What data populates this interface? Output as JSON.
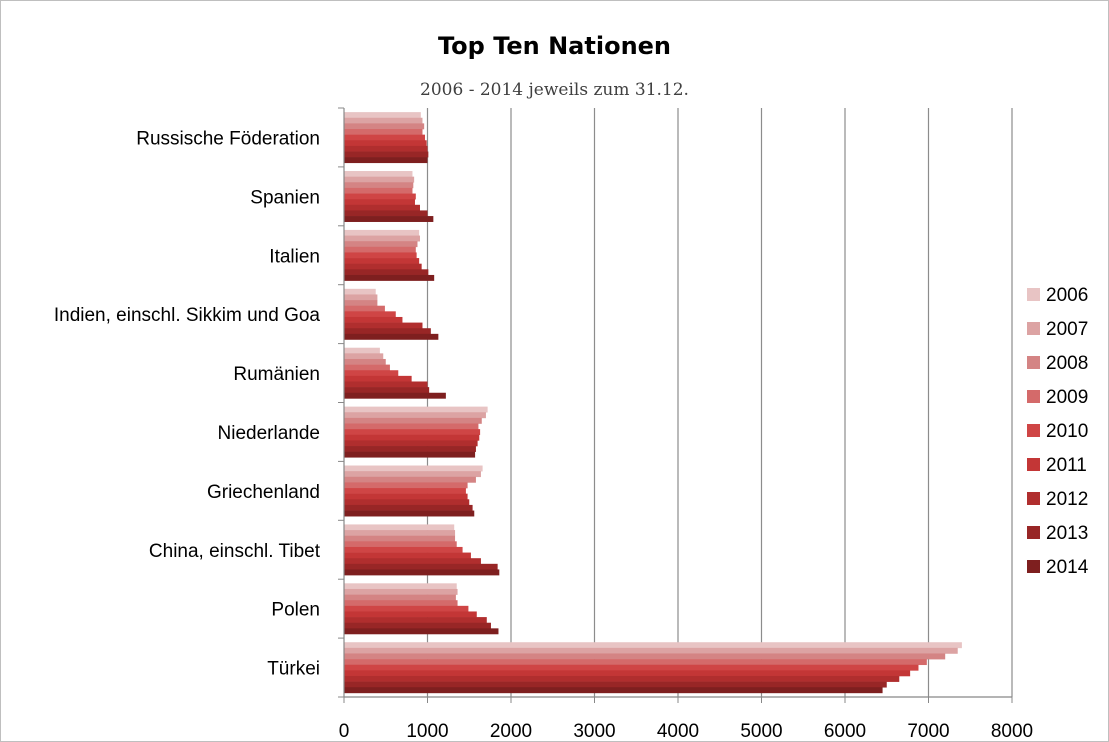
{
  "chart_data": {
    "type": "bar",
    "orientation": "horizontal",
    "title": "Top Ten Nationen",
    "subtitle": "2006 - 2014 jeweils zum 31.12.",
    "xlabel": "",
    "ylabel": "",
    "xlim": [
      0,
      8000
    ],
    "x_ticks": [
      0,
      1000,
      2000,
      3000,
      4000,
      5000,
      6000,
      7000,
      8000
    ],
    "grid": "vertical",
    "legend_position": "right",
    "categories": [
      "Russische Föderation",
      "Spanien",
      "Italien",
      "Indien, einschl. Sikkim und Goa",
      "Rumänien",
      "Niederlande",
      "Griechenland",
      "China, einschl. Tibet",
      "Polen",
      "Türkei"
    ],
    "series": [
      {
        "name": "2006",
        "color": "#e8c4c4",
        "values": [
          920,
          820,
          900,
          380,
          430,
          1720,
          1660,
          1320,
          1350,
          7400
        ]
      },
      {
        "name": "2007",
        "color": "#dca3a3",
        "values": [
          940,
          840,
          910,
          400,
          470,
          1700,
          1640,
          1330,
          1360,
          7350
        ]
      },
      {
        "name": "2008",
        "color": "#d48484",
        "values": [
          960,
          830,
          880,
          400,
          500,
          1650,
          1580,
          1330,
          1340,
          7200
        ]
      },
      {
        "name": "2009",
        "color": "#d46a6a",
        "values": [
          940,
          820,
          860,
          490,
          550,
          1610,
          1480,
          1350,
          1360,
          6980
        ]
      },
      {
        "name": "2010",
        "color": "#cf4545",
        "values": [
          970,
          860,
          870,
          620,
          650,
          1630,
          1460,
          1420,
          1490,
          6880
        ]
      },
      {
        "name": "2011",
        "color": "#c33636",
        "values": [
          990,
          850,
          900,
          700,
          810,
          1620,
          1480,
          1520,
          1590,
          6780
        ]
      },
      {
        "name": "2012",
        "color": "#b02e2e",
        "values": [
          1000,
          910,
          930,
          940,
          1000,
          1600,
          1500,
          1640,
          1710,
          6650
        ]
      },
      {
        "name": "2013",
        "color": "#982626",
        "values": [
          1010,
          1000,
          1010,
          1040,
          1020,
          1580,
          1540,
          1840,
          1760,
          6500
        ]
      },
      {
        "name": "2014",
        "color": "#7e1f1f",
        "values": [
          1000,
          1070,
          1080,
          1130,
          1220,
          1570,
          1560,
          1860,
          1850,
          6450
        ]
      }
    ]
  }
}
